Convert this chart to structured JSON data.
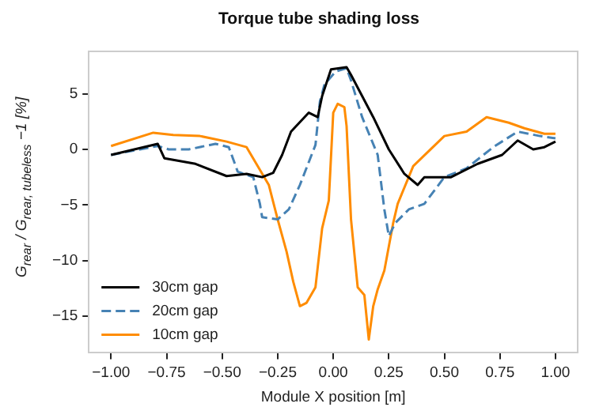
{
  "chart_data": {
    "type": "line",
    "title": "Torque tube shading loss",
    "xlabel": "Module X position [m]",
    "ylabel": "G$_{rear}$ / G$_{rear, tubeless}$ −1 [%]",
    "xlim": [
      -1.1,
      1.1
    ],
    "ylim": [
      -18.3,
      8.8
    ],
    "xticks": [
      {
        "value": -1,
        "label": "−1.00"
      },
      {
        "value": -0.75,
        "label": "−0.75"
      },
      {
        "value": -0.5,
        "label": "−0.50"
      },
      {
        "value": -0.25,
        "label": "−0.25"
      },
      {
        "value": 0,
        "label": "0.00"
      },
      {
        "value": 0.25,
        "label": "0.25"
      },
      {
        "value": 0.5,
        "label": "0.50"
      },
      {
        "value": 0.75,
        "label": "0.75"
      },
      {
        "value": 1,
        "label": "1.00"
      }
    ],
    "yticks": [
      {
        "value": -15,
        "label": "−15"
      },
      {
        "value": -10,
        "label": "−10"
      },
      {
        "value": -5,
        "label": "−5"
      },
      0,
      5
    ],
    "grid": false,
    "legend": "bottom left",
    "marker": "none",
    "series": [
      {
        "name": "30cm gap",
        "color": "#000000",
        "line_style": "solid",
        "x": [
          -1.0,
          -0.79,
          -0.76,
          -0.62,
          -0.48,
          -0.39,
          -0.32,
          -0.27,
          -0.23,
          -0.19,
          -0.11,
          -0.07,
          -0.05,
          -0.01,
          0.06,
          0.08,
          0.13,
          0.18,
          0.25,
          0.32,
          0.38,
          0.41,
          0.53,
          0.65,
          0.76,
          0.83,
          0.9,
          0.95,
          1.0
        ],
        "values": [
          -0.5,
          0.5,
          -0.8,
          -1.3,
          -2.4,
          -2.2,
          -2.5,
          -2.1,
          -0.5,
          1.6,
          3.3,
          2.9,
          4.8,
          7.2,
          7.4,
          6.7,
          4.8,
          2.9,
          0,
          -2.2,
          -3.2,
          -2.5,
          -2.5,
          -1.3,
          -0.5,
          0.8,
          0,
          0.2,
          0.7
        ]
      },
      {
        "name": "20cm gap",
        "color": "#4682b4",
        "line_style": "dashed",
        "x": [
          -1.0,
          -0.79,
          -0.74,
          -0.65,
          -0.53,
          -0.47,
          -0.43,
          -0.36,
          -0.33,
          -0.32,
          -0.25,
          -0.2,
          -0.15,
          -0.08,
          -0.06,
          -0.04,
          0.01,
          0.06,
          0.08,
          0.13,
          0.2,
          0.23,
          0.25,
          0.28,
          0.34,
          0.41,
          0.5,
          0.6,
          0.72,
          0.83,
          0.93,
          1.0
        ],
        "values": [
          -0.5,
          0.3,
          0,
          0,
          0.5,
          0.2,
          -2.0,
          -2.5,
          -4.9,
          -6.1,
          -6.3,
          -5.4,
          -3.2,
          0.4,
          4.3,
          5.8,
          7.0,
          7.3,
          6.2,
          2.9,
          -0.5,
          -5.4,
          -7.8,
          -6.6,
          -5.4,
          -4.9,
          -2.5,
          -1.7,
          0.2,
          1.6,
          1.2,
          1.0
        ]
      },
      {
        "name": "10cm gap",
        "color": "#ff8c00",
        "line_style": "solid",
        "x": [
          -1.0,
          -0.81,
          -0.72,
          -0.6,
          -0.48,
          -0.39,
          -0.29,
          -0.25,
          -0.21,
          -0.18,
          -0.15,
          -0.12,
          -0.08,
          -0.05,
          -0.02,
          0.0,
          0.02,
          0.05,
          0.06,
          0.08,
          0.11,
          0.14,
          0.16,
          0.18,
          0.2,
          0.23,
          0.27,
          0.29,
          0.36,
          0.5,
          0.6,
          0.69,
          0.79,
          0.86,
          0.95,
          1.0
        ],
        "values": [
          0.3,
          1.5,
          1.3,
          1.2,
          0.7,
          0.2,
          -3.2,
          -6.3,
          -9.2,
          -11.9,
          -14.1,
          -13.8,
          -12.4,
          -7.1,
          -4.6,
          3.3,
          4.1,
          3.8,
          2.1,
          -6.3,
          -12.4,
          -13.1,
          -17.1,
          -14.1,
          -12.6,
          -10.9,
          -6.6,
          -4.9,
          -1.5,
          1.2,
          1.6,
          2.9,
          2.4,
          1.9,
          1.4,
          1.4
        ]
      }
    ]
  }
}
